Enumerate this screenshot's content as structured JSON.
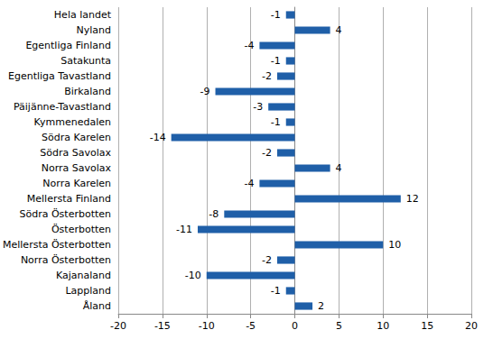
{
  "chart_data": {
    "type": "bar",
    "orientation": "horizontal",
    "categories": [
      "Hela landet",
      "Nyland",
      "Egentliga Finland",
      "Satakunta",
      "Egentliga Tavastland",
      "Birkaland",
      "Päijänne-Tavastland",
      "Kymmenedalen",
      "Södra Karelen",
      "Södra Savolax",
      "Norra Savolax",
      "Norra Karelen",
      "Mellersta Finland",
      "Södra Österbotten",
      "Österbotten",
      "Mellersta Österbotten",
      "Norra Österbotten",
      "Kajanaland",
      "Lappland",
      "Åland"
    ],
    "values": [
      -1,
      4,
      -4,
      -1,
      -2,
      -9,
      -3,
      -1,
      -14,
      -2,
      4,
      -4,
      12,
      -8,
      -11,
      10,
      -2,
      -10,
      -1,
      2
    ],
    "color": "#1f5fa8",
    "xlim": [
      -20,
      20
    ],
    "xticks": [
      -20,
      -15,
      -10,
      -5,
      0,
      5,
      10,
      15,
      20
    ],
    "grid": true,
    "data_labels": true
  }
}
